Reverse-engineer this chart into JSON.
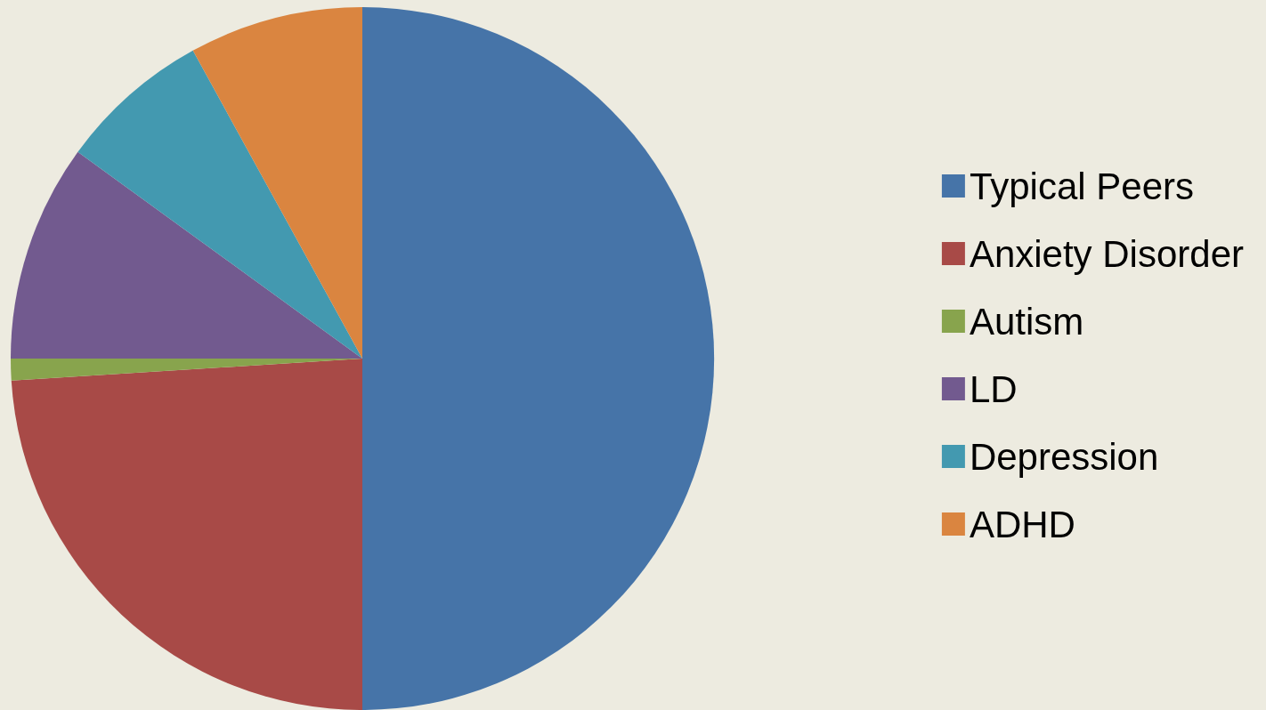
{
  "chart_data": {
    "type": "pie",
    "categories": [
      "Typical Peers",
      "Anxiety Disorder",
      "Autism",
      "LD",
      "Depression",
      "ADHD"
    ],
    "values": [
      50,
      24,
      1,
      10,
      7,
      8
    ],
    "colors": [
      "#4674a8",
      "#a84a47",
      "#88a44d",
      "#725a8f",
      "#4399b0",
      "#da8540"
    ],
    "legend": "right"
  }
}
